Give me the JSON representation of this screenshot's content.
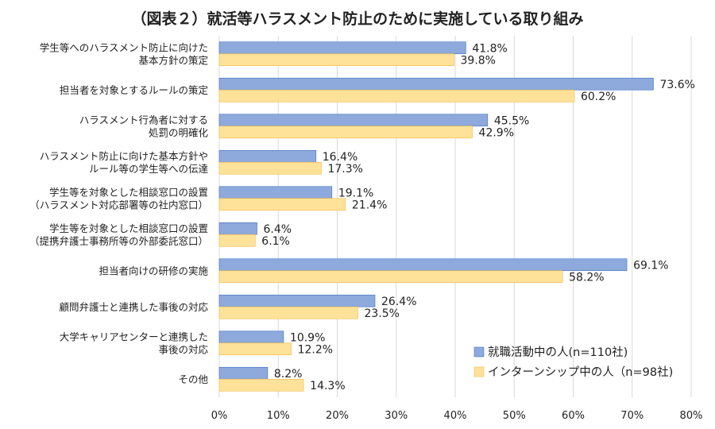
{
  "chart_data": {
    "type": "bar",
    "orientation": "horizontal",
    "title": "（図表２）就活等ハラスメント防止のために実施している取り組み",
    "categories": [
      [
        "学生等へのハラスメント防止に向けた",
        "基本方針の策定"
      ],
      [
        "担当者を対象とするルールの策定"
      ],
      [
        "ハラスメント行為者に対する",
        "処罰の明確化"
      ],
      [
        "ハラスメント防止に向けた基本方針や",
        "ルール等の学生等への伝達"
      ],
      [
        "学生等を対象とした相談窓口の設置",
        "（ハラスメント対応部署等の社内窓口）"
      ],
      [
        "学生等を対象とした相談窓口の設置",
        "（提携弁護士事務所等の外部委託窓口）"
      ],
      [
        "担当者向けの研修の実施"
      ],
      [
        "顧問弁護士と連携した事後の対応"
      ],
      [
        "大学キャリアセンターと連携した",
        "事後の対応"
      ],
      [
        "その他"
      ]
    ],
    "series": [
      {
        "name": "就職活動中の人(n=110社)",
        "color": "#8ea9db",
        "border": "#4472c4",
        "values": [
          41.8,
          73.6,
          45.5,
          16.4,
          19.1,
          6.4,
          69.1,
          26.4,
          10.9,
          8.2
        ],
        "labels": [
          "41.8%",
          "73.6%",
          "45.5%",
          "16.4%",
          "19.1%",
          "6.4%",
          "69.1%",
          "26.4%",
          "10.9%",
          "8.2%"
        ]
      },
      {
        "name": "インターンシップ中の人（n=98社)",
        "color": "#ffe29a",
        "border": "#f4b942",
        "values": [
          39.8,
          60.2,
          42.9,
          17.3,
          21.4,
          6.1,
          58.2,
          23.5,
          12.2,
          14.3
        ],
        "labels": [
          "39.8%",
          "60.2%",
          "42.9%",
          "17.3%",
          "21.4%",
          "6.1%",
          "58.2%",
          "23.5%",
          "12.2%",
          "14.3%"
        ]
      }
    ],
    "xlim": [
      0,
      80
    ],
    "xticks": [
      "0%",
      "10%",
      "20%",
      "30%",
      "40%",
      "50%",
      "60%",
      "70%",
      "80%"
    ],
    "grid": true,
    "legend": "bottom-right",
    "xlabel": "",
    "ylabel": ""
  }
}
